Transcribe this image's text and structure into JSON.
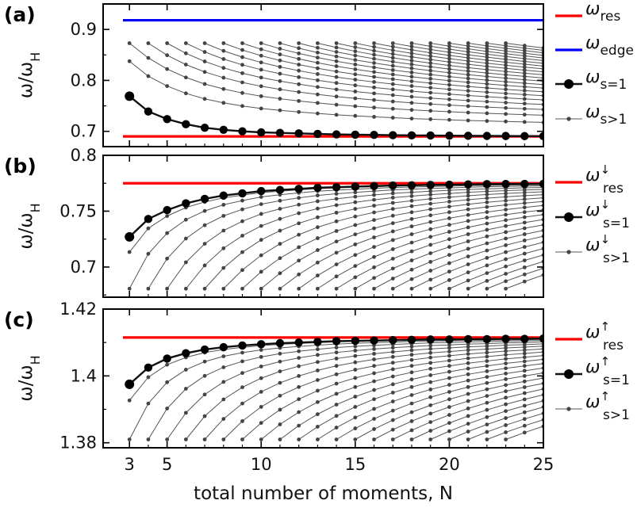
{
  "figure": {
    "xlabel": "total number of moments, N",
    "ylabel_main": "ω/ω",
    "ylabel_sub": "H",
    "x_ticks": [
      3,
      5,
      10,
      15,
      20,
      25
    ],
    "x_tick_labels": [
      "3",
      "5",
      "10",
      "15",
      "20",
      "25"
    ]
  },
  "chart_data": [
    {
      "type": "line",
      "panel": "(a)",
      "xlabel": "total number of moments, N",
      "ylabel": "ω/ωH",
      "xlim": [
        1.6,
        25
      ],
      "ylim": [
        0.67,
        0.95
      ],
      "y_ticks": [
        0.7,
        0.8,
        0.9
      ],
      "y_tick_labels": [
        "0.7",
        "0.8",
        "0.9"
      ],
      "hlines": [
        {
          "name_main": "ω",
          "name_sub": "res",
          "value": 0.69,
          "color": "#ff0000"
        },
        {
          "name_main": "ω",
          "name_sub": "edge",
          "value": 0.918,
          "color": "#0000ff"
        }
      ],
      "series": [
        {
          "name_main": "ω",
          "name_sub": "s=1",
          "style": "large-marker",
          "color": "#000000",
          "x": [
            3,
            4,
            5,
            6,
            7,
            8,
            9,
            10,
            11,
            12,
            13,
            14,
            15,
            16,
            17,
            18,
            19,
            20,
            21,
            22,
            23,
            24,
            25
          ],
          "y": [
            0.769,
            0.739,
            0.724,
            0.714,
            0.707,
            0.703,
            0.7,
            0.698,
            0.697,
            0.696,
            0.695,
            0.694,
            0.6935,
            0.693,
            0.6925,
            0.692,
            0.6918,
            0.6915,
            0.6912,
            0.691,
            0.6908,
            0.6906,
            0.6905
          ]
        },
        {
          "name_main": "ω",
          "name_sub": "s>1",
          "style": "small-marker-family",
          "color": "#555555"
        }
      ]
    },
    {
      "type": "line",
      "panel": "(b)",
      "xlabel": "total number of moments, N",
      "ylabel": "ω/ωH",
      "xlim": [
        1.6,
        25
      ],
      "ylim": [
        0.673,
        0.8
      ],
      "y_ticks": [
        0.7,
        0.75,
        0.8
      ],
      "y_tick_labels": [
        "0.7",
        "0.75",
        "0.8"
      ],
      "hlines": [
        {
          "name_main": "ω",
          "name_sup": "↓",
          "name_sub": "res",
          "value": 0.775,
          "color": "#ff0000"
        }
      ],
      "series": [
        {
          "name_main": "ω",
          "name_sup": "↓",
          "name_sub": "s=1",
          "style": "large-marker",
          "color": "#000000",
          "x": [
            3,
            4,
            5,
            6,
            7,
            8,
            9,
            10,
            11,
            12,
            13,
            14,
            15,
            16,
            17,
            18,
            19,
            20,
            21,
            22,
            23,
            24,
            25
          ],
          "y": [
            0.727,
            0.743,
            0.751,
            0.757,
            0.761,
            0.764,
            0.766,
            0.768,
            0.769,
            0.77,
            0.771,
            0.7715,
            0.772,
            0.7725,
            0.773,
            0.7732,
            0.7735,
            0.7737,
            0.774,
            0.7742,
            0.7743,
            0.7744,
            0.7745
          ]
        },
        {
          "name_main": "ω",
          "name_sup": "↓",
          "name_sub": "s>1",
          "style": "small-marker-family",
          "color": "#555555"
        }
      ]
    },
    {
      "type": "line",
      "panel": "(c)",
      "xlabel": "total number of moments, N",
      "ylabel": "ω/ωH",
      "xlim": [
        1.6,
        25
      ],
      "ylim": [
        1.3785,
        1.42
      ],
      "y_ticks": [
        1.38,
        1.4,
        1.42
      ],
      "y_tick_labels": [
        "1.38",
        "1.4",
        "1.42"
      ],
      "hlines": [
        {
          "name_main": "ω",
          "name_sup": "↑",
          "name_sub": "res",
          "value": 1.4115,
          "color": "#ff0000"
        }
      ],
      "series": [
        {
          "name_main": "ω",
          "name_sup": "↑",
          "name_sub": "s=1",
          "style": "large-marker",
          "color": "#000000",
          "x": [
            3,
            4,
            5,
            6,
            7,
            8,
            9,
            10,
            11,
            12,
            13,
            14,
            15,
            16,
            17,
            18,
            19,
            20,
            21,
            22,
            23,
            24,
            25
          ],
          "y": [
            1.3975,
            1.4025,
            1.4052,
            1.4068,
            1.4079,
            1.4086,
            1.4091,
            1.4095,
            1.4098,
            1.41,
            1.4102,
            1.4104,
            1.4105,
            1.4106,
            1.4107,
            1.4108,
            1.4109,
            1.4109,
            1.411,
            1.411,
            1.4111,
            1.4111,
            1.4112
          ]
        },
        {
          "name_main": "ω",
          "name_sup": "↑",
          "name_sub": "s>1",
          "style": "small-marker-family",
          "color": "#555555"
        }
      ]
    }
  ]
}
